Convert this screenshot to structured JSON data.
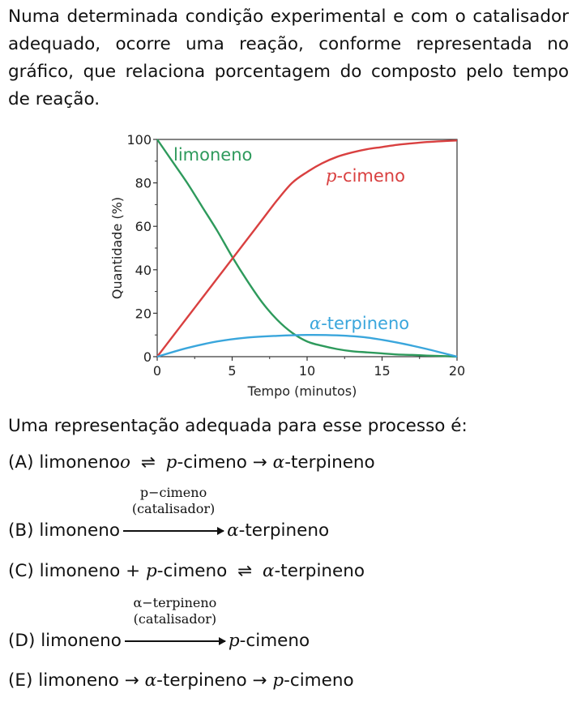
{
  "question": "Numa determinada condição experimental e com o catalisador adequado, ocorre uma reação, conforme representada no gráfico, que relaciona porcentagem do composto pelo tempo de reação.",
  "prompt": "Uma representação adequada para esse processo é:",
  "options": [
    {
      "letter": "(A)",
      "parts": [
        "limoneno",
        "⇌",
        "p",
        "-cimeno",
        "→",
        "α",
        "-terpineno"
      ]
    },
    {
      "letter": "(B)",
      "left": "limoneno",
      "above1": "p−cimeno",
      "above2": "(catalisador)",
      "right_italic": "α",
      "right": "-terpineno"
    },
    {
      "letter": "(C)",
      "parts": [
        "limoneno",
        "+",
        "p",
        "-cimeno",
        "⇌",
        "α",
        "-terpineno"
      ]
    },
    {
      "letter": "(D)",
      "left": "limoneno",
      "above1": "α−terpineno",
      "above2": "(catalisador)",
      "right_italic": "p",
      "right": "-cimeno"
    },
    {
      "letter": "(E)",
      "parts": [
        "limoneno",
        "→",
        "α",
        "-terpineno",
        "→",
        "p",
        "-cimeno"
      ]
    }
  ],
  "chart_data": {
    "type": "line",
    "xlabel": "Tempo (minutos)",
    "ylabel": "Quantidade (%)",
    "xlim": [
      0,
      20
    ],
    "ylim": [
      0,
      100
    ],
    "xticks": [
      0,
      5,
      10,
      15,
      20
    ],
    "yticks": [
      0,
      20,
      40,
      60,
      80,
      100
    ],
    "series": [
      {
        "name": "limoneno",
        "color": "#2e9a5c",
        "x": [
          0,
          1,
          2,
          3,
          4,
          5,
          6,
          7,
          8,
          9,
          10,
          11,
          12,
          13,
          14,
          15,
          16,
          17,
          18,
          19,
          20
        ],
        "y": [
          100,
          90,
          80,
          69,
          58,
          46,
          35,
          25,
          17,
          11,
          7,
          5,
          3.5,
          2.5,
          2,
          1.5,
          1,
          0.8,
          0.5,
          0.3,
          0
        ]
      },
      {
        "name": "p-cimeno",
        "color": "#d94040",
        "x": [
          0,
          1,
          2,
          3,
          4,
          5,
          6,
          7,
          8,
          9,
          10,
          11,
          12,
          13,
          14,
          15,
          16,
          17,
          18,
          19,
          20
        ],
        "y": [
          0,
          9,
          18,
          27,
          36,
          45,
          54,
          63,
          72,
          80,
          85,
          89,
          92,
          94,
          95.5,
          96.5,
          97.5,
          98.2,
          98.8,
          99.2,
          99.5
        ]
      },
      {
        "name": "α-terpineno",
        "color": "#3aa6dc",
        "x": [
          0,
          2,
          4,
          6,
          8,
          10,
          12,
          14,
          16,
          18,
          20
        ],
        "y": [
          0,
          4,
          7,
          8.8,
          9.6,
          10,
          9.8,
          8.8,
          6.5,
          3.5,
          0
        ]
      }
    ]
  }
}
